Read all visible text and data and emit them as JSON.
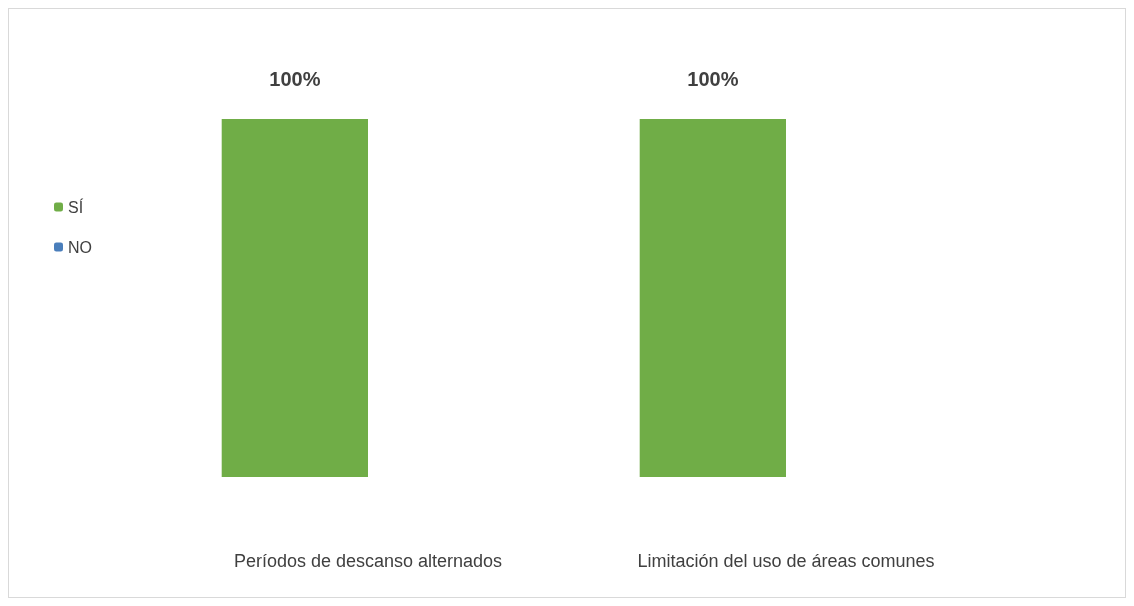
{
  "chart_data": {
    "type": "bar",
    "categories": [
      "Períodos de descanso alternados",
      "Limitación del uso de áreas comunes"
    ],
    "series": [
      {
        "name": "SÍ",
        "color": "#70ad47",
        "values": [
          100,
          100
        ],
        "value_labels": [
          "100%",
          "100%"
        ]
      },
      {
        "name": "NO",
        "color": "#4a7ebb",
        "values": [
          0,
          0
        ],
        "value_labels": [
          null,
          null
        ]
      }
    ],
    "legend": "left",
    "grid": false
  }
}
